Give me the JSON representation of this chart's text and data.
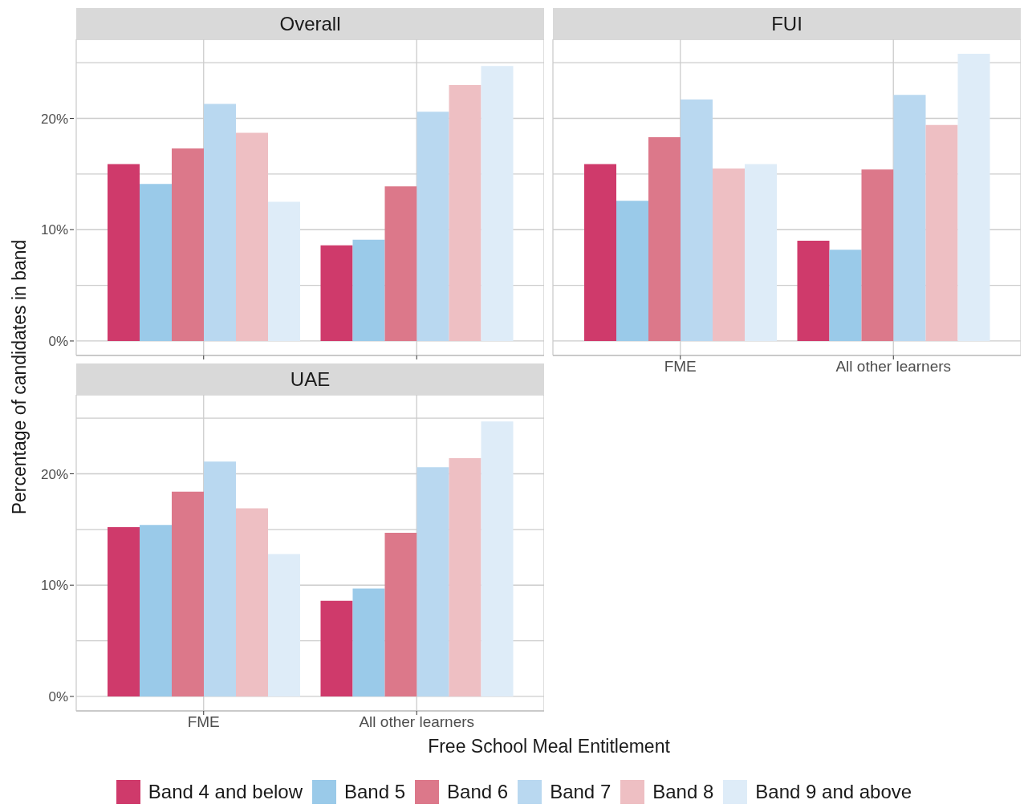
{
  "chart_data": [
    {
      "type": "bar",
      "title": "Overall",
      "ylabel": "Percentage of candidates in band",
      "categories": [
        null,
        null
      ],
      "tick_labels": "y",
      "grid": true,
      "legend": "bottom",
      "ylim": [
        -1.3,
        27.1
      ],
      "yticks": [
        {
          "value": 0,
          "label": "0%"
        },
        {
          "value": 5,
          "label": null
        },
        {
          "value": 10,
          "label": "10%"
        },
        {
          "value": 15,
          "label": null
        },
        {
          "value": 20,
          "label": "20%"
        },
        {
          "value": 25,
          "label": null
        }
      ],
      "series": [
        {
          "name": "Band 4 and below",
          "color": "#cf3a6b",
          "values": [
            15.9,
            8.6
          ]
        },
        {
          "name": "Band 5",
          "color": "#9acae9",
          "values": [
            14.1,
            9.1
          ]
        },
        {
          "name": "Band 6",
          "color": "#dc788a",
          "values": [
            17.3,
            13.9
          ]
        },
        {
          "name": "Band 7",
          "color": "#b9d8f0",
          "values": [
            21.3,
            20.6
          ]
        },
        {
          "name": "Band 8",
          "color": "#eebfc3",
          "values": [
            18.7,
            23.0
          ]
        },
        {
          "name": "Band 9 and above",
          "color": "#deecf8",
          "values": [
            12.5,
            24.7
          ]
        }
      ]
    },
    {
      "type": "bar",
      "title": "FUI",
      "categories": [
        "FME",
        "All other learners"
      ],
      "tick_labels": "x",
      "grid": true,
      "ylim": [
        -1.3,
        27.1
      ],
      "yticks": [
        {
          "value": 0,
          "label": null
        },
        {
          "value": 5,
          "label": null
        },
        {
          "value": 10,
          "label": null
        },
        {
          "value": 15,
          "label": null
        },
        {
          "value": 20,
          "label": null
        },
        {
          "value": 25,
          "label": null
        }
      ],
      "series": [
        {
          "color": "#cf3a6b",
          "values": [
            15.9,
            9.0
          ]
        },
        {
          "color": "#9acae9",
          "values": [
            12.6,
            8.2
          ]
        },
        {
          "color": "#dc788a",
          "values": [
            18.3,
            15.4
          ]
        },
        {
          "color": "#b9d8f0",
          "values": [
            21.7,
            22.1
          ]
        },
        {
          "color": "#eebfc3",
          "values": [
            15.5,
            19.4
          ]
        },
        {
          "color": "#deecf8",
          "values": [
            15.9,
            25.8
          ]
        }
      ]
    },
    {
      "type": "bar",
      "title": "UAE",
      "xlabel": "Free School Meal Entitlement",
      "categories": [
        "FME",
        "All other learners"
      ],
      "grid": true,
      "ylim": [
        -1.3,
        27.1
      ],
      "yticks": [
        {
          "value": 0,
          "label": "0%"
        },
        {
          "value": 5,
          "label": null
        },
        {
          "value": 10,
          "label": "10%"
        },
        {
          "value": 15,
          "label": null
        },
        {
          "value": 20,
          "label": "20%"
        },
        {
          "value": 25,
          "label": null
        }
      ],
      "series": [
        {
          "color": "#cf3a6b",
          "values": [
            15.2,
            8.6
          ]
        },
        {
          "color": "#9acae9",
          "values": [
            15.4,
            9.7
          ]
        },
        {
          "color": "#dc788a",
          "values": [
            18.4,
            14.7
          ]
        },
        {
          "color": "#b9d8f0",
          "values": [
            21.1,
            20.6
          ]
        },
        {
          "color": "#eebfc3",
          "values": [
            16.9,
            21.4
          ]
        },
        {
          "color": "#deecf8",
          "values": [
            12.8,
            24.7
          ]
        }
      ]
    }
  ]
}
